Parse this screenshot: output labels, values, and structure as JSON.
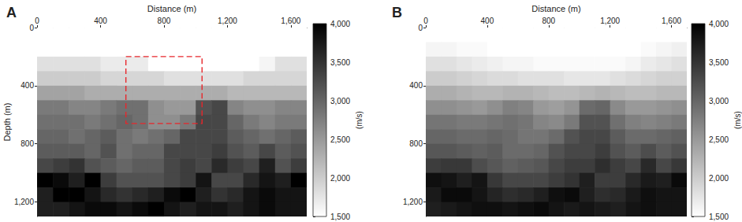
{
  "chart_data": [
    {
      "type": "heatmap",
      "title": "A",
      "xlabel": "Distance (m)",
      "ylabel": "Depth (m)",
      "xlim": [
        0,
        1700
      ],
      "ylim": [
        0,
        1300
      ],
      "xticks": [
        0,
        400,
        800,
        1200,
        1600
      ],
      "yticks": [
        0,
        400,
        800,
        1200
      ],
      "x_edges": [
        0,
        100,
        200,
        300,
        400,
        500,
        600,
        700,
        800,
        900,
        1000,
        1100,
        1200,
        1300,
        1400,
        1500,
        1600,
        1700
      ],
      "y_edges": [
        0,
        100,
        200,
        300,
        400,
        500,
        600,
        700,
        800,
        900,
        1000,
        1100,
        1200,
        1300
      ],
      "cells": [
        [
          1500,
          1500,
          1500,
          1500,
          1500,
          1500,
          1500,
          1500,
          1500,
          1500,
          1500,
          1500,
          1500,
          1500,
          1500,
          1500,
          1500
        ],
        [
          1500,
          1500,
          1500,
          1500,
          1500,
          1500,
          1500,
          1500,
          1500,
          1500,
          1500,
          1500,
          1500,
          1500,
          1500,
          1500,
          1500
        ],
        [
          1800,
          1800,
          1800,
          1800,
          1700,
          1700,
          1700,
          1500,
          1500,
          1500,
          1500,
          1500,
          1500,
          1500,
          1600,
          1800,
          1800
        ],
        [
          2000,
          2000,
          2000,
          2000,
          1900,
          1900,
          1900,
          1900,
          1800,
          1800,
          1800,
          1800,
          1800,
          1900,
          1900,
          1900,
          1900
        ],
        [
          2400,
          2400,
          2400,
          2300,
          2300,
          2300,
          2300,
          2300,
          2300,
          2300,
          2300,
          2300,
          2200,
          2200,
          2200,
          2200,
          2200
        ],
        [
          2800,
          2800,
          2700,
          2700,
          2800,
          2900,
          2900,
          2600,
          2500,
          2500,
          3200,
          3300,
          2700,
          2600,
          2600,
          2700,
          2700
        ],
        [
          2900,
          2900,
          2900,
          2800,
          2900,
          3000,
          2900,
          2600,
          2600,
          2800,
          3300,
          3300,
          3000,
          2800,
          2700,
          2800,
          2800
        ],
        [
          3000,
          3000,
          2900,
          3000,
          3100,
          2900,
          2800,
          2900,
          3000,
          3300,
          3300,
          3300,
          3100,
          3000,
          2900,
          3000,
          3100
        ],
        [
          3100,
          3100,
          3100,
          3000,
          3200,
          2900,
          3000,
          3000,
          3300,
          3300,
          3300,
          3400,
          3200,
          3100,
          3300,
          3100,
          3200
        ],
        [
          3300,
          3400,
          3500,
          3200,
          3100,
          3000,
          3100,
          3100,
          3300,
          3400,
          3300,
          3600,
          3400,
          3300,
          3700,
          3200,
          3400
        ],
        [
          4000,
          3900,
          3700,
          4000,
          3400,
          3200,
          3200,
          3200,
          3300,
          3400,
          3800,
          3300,
          3300,
          3600,
          3800,
          3700,
          4000
        ],
        [
          3700,
          4000,
          4000,
          3800,
          3600,
          3500,
          3600,
          3700,
          3900,
          4000,
          3700,
          3500,
          3600,
          3800,
          3900,
          3800,
          3800
        ],
        [
          3700,
          3700,
          3800,
          3900,
          3900,
          3800,
          3900,
          4000,
          3800,
          3700,
          3800,
          3800,
          3700,
          3800,
          3900,
          3800,
          3800
        ]
      ],
      "annotations": [
        {
          "shape": "rect",
          "x": [
            560,
            1040
          ],
          "y": [
            200,
            660
          ],
          "color": "#e8262b",
          "line_style": "dashed"
        }
      ],
      "colorbar": {
        "range": [
          1500,
          4000
        ],
        "ticks": [
          1500,
          2000,
          2500,
          3000,
          3500,
          4000
        ],
        "label": "(m/s)",
        "colors": [
          "#ffffff",
          "#000000"
        ]
      }
    },
    {
      "type": "heatmap",
      "title": "B",
      "xlabel": "Distance (m)",
      "xlim": [
        0,
        1700
      ],
      "ylim": [
        0,
        1300
      ],
      "xticks": [
        0,
        400,
        800,
        1200,
        1600
      ],
      "yticks": [
        0,
        400,
        800,
        1200
      ],
      "x_edges": [
        0,
        100,
        200,
        300,
        400,
        500,
        600,
        700,
        800,
        900,
        1000,
        1100,
        1200,
        1300,
        1400,
        1500,
        1600,
        1700
      ],
      "y_edges": [
        0,
        100,
        200,
        300,
        400,
        500,
        600,
        700,
        800,
        900,
        1000,
        1100,
        1200,
        1300
      ],
      "cells": [
        [
          1500,
          1500,
          1500,
          1500,
          1500,
          1500,
          1500,
          1500,
          1500,
          1500,
          1500,
          1500,
          1500,
          1500,
          1500,
          1500,
          1500
        ],
        [
          1600,
          1600,
          1550,
          1550,
          1500,
          1500,
          1500,
          1500,
          1500,
          1500,
          1500,
          1500,
          1500,
          1500,
          1550,
          1600,
          1650
        ],
        [
          1800,
          1800,
          1750,
          1700,
          1650,
          1600,
          1600,
          1550,
          1550,
          1550,
          1550,
          1550,
          1550,
          1600,
          1700,
          1750,
          1800
        ],
        [
          2000,
          2000,
          1950,
          1900,
          1850,
          1850,
          1800,
          1800,
          1800,
          1750,
          1750,
          1750,
          1800,
          1850,
          1900,
          1950,
          1950
        ],
        [
          2300,
          2300,
          2250,
          2200,
          2200,
          2250,
          2250,
          2200,
          2150,
          2150,
          2200,
          2250,
          2200,
          2150,
          2150,
          2200,
          2200
        ],
        [
          2600,
          2600,
          2550,
          2500,
          2600,
          2750,
          2700,
          2500,
          2450,
          2550,
          2950,
          3000,
          2650,
          2500,
          2500,
          2550,
          2600
        ],
        [
          2850,
          2850,
          2800,
          2800,
          2850,
          2900,
          2850,
          2700,
          2650,
          2800,
          3200,
          3200,
          2900,
          2750,
          2700,
          2750,
          2800
        ],
        [
          3000,
          3000,
          2950,
          2950,
          3000,
          2950,
          2850,
          2850,
          2950,
          3200,
          3300,
          3300,
          3100,
          2950,
          2950,
          3000,
          3050
        ],
        [
          3150,
          3150,
          3100,
          3050,
          3100,
          2950,
          2950,
          3000,
          3200,
          3300,
          3300,
          3400,
          3200,
          3100,
          3250,
          3100,
          3200
        ],
        [
          3400,
          3450,
          3450,
          3250,
          3150,
          3050,
          3100,
          3150,
          3300,
          3400,
          3400,
          3550,
          3400,
          3300,
          3600,
          3300,
          3450
        ],
        [
          3850,
          3800,
          3700,
          3800,
          3450,
          3300,
          3300,
          3300,
          3400,
          3500,
          3700,
          3400,
          3400,
          3600,
          3750,
          3700,
          3900
        ],
        [
          3750,
          3900,
          3900,
          3800,
          3650,
          3550,
          3600,
          3700,
          3850,
          3900,
          3700,
          3550,
          3600,
          3750,
          3850,
          3800,
          3800
        ],
        [
          3700,
          3750,
          3800,
          3850,
          3850,
          3800,
          3850,
          3900,
          3800,
          3750,
          3800,
          3750,
          3700,
          3800,
          3850,
          3800,
          3800
        ]
      ],
      "colorbar": {
        "range": [
          1500,
          4000
        ],
        "ticks": [
          1500,
          2000,
          2500,
          3000,
          3500,
          4000
        ],
        "label": "(m/s)",
        "colors": [
          "#ffffff",
          "#000000"
        ]
      }
    }
  ]
}
